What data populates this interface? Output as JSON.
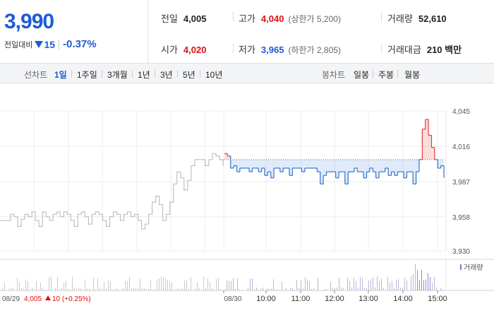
{
  "quote": {
    "current_price": "3,990",
    "change_label": "전일대비",
    "change_abs": "15",
    "change_pct": "-0.37%",
    "stats": {
      "prev_close_label": "전일",
      "prev_close": "4,005",
      "high_label": "고가",
      "high": "4,040",
      "upper_limit": "(상한가 5,200)",
      "volume_label": "거래량",
      "volume": "52,610",
      "open_label": "시가",
      "open": "4,020",
      "low_label": "저가",
      "low": "3,965",
      "lower_limit": "(하한가 2,805)",
      "amount_label": "거래대금",
      "amount": "210 백만"
    }
  },
  "tabs": {
    "line_label": "선차트",
    "line_items": [
      "1일",
      "1주일",
      "3개월",
      "1년",
      "3년",
      "5년",
      "10년"
    ],
    "active_line": "1일",
    "candle_label": "봉차트",
    "candle_items": [
      "일봉",
      "주봉",
      "월봉"
    ]
  },
  "chart_data": {
    "type": "line",
    "y_ticks": [
      "4,045",
      "4,016",
      "3,987",
      "3,958",
      "3,930"
    ],
    "ylim": [
      3930,
      4045
    ],
    "prev_close": 4005,
    "x_ticks": [
      "08/30",
      "10:00",
      "11:00",
      "12:00",
      "13:00",
      "14:00",
      "15:00"
    ],
    "prev_day_label": "08/29",
    "prev_day_close": "4,005",
    "prev_day_change": "10 (+0.25%)",
    "volume_legend": "거래량",
    "prev_day_series": [
      3955,
      3955,
      3955,
      3960,
      3958,
      3950,
      3956,
      3960,
      3958,
      3962,
      3955,
      3950,
      3962,
      3958,
      3955,
      3960,
      3962,
      3958,
      3962,
      3960,
      3955,
      3950,
      3960,
      3962,
      3958,
      3952,
      3960,
      3962,
      3960,
      3955,
      3950,
      3958,
      3962,
      3960,
      3955,
      3960,
      3962,
      3958,
      3960,
      3955,
      3948,
      3952,
      3960,
      3970,
      3975,
      3968,
      3955,
      3960,
      3970,
      3985,
      3995,
      3990,
      3980,
      3988,
      4000,
      4005,
      4005,
      4005,
      4000,
      4005,
      4010,
      4008,
      4005,
      4000
    ],
    "today_series": [
      4010,
      4008,
      3998,
      4000,
      3995,
      3998,
      3998,
      3998,
      3995,
      3998,
      3998,
      3995,
      3998,
      3992,
      3995,
      3990,
      3998,
      3998,
      3995,
      3998,
      3998,
      3992,
      3998,
      3998,
      3998,
      3995,
      3998,
      3998,
      3998,
      3998,
      3995,
      3985,
      3992,
      3995,
      3995,
      3995,
      3990,
      3995,
      3995,
      3985,
      3995,
      3995,
      3998,
      3995,
      3995,
      3990,
      3995,
      3998,
      3995,
      3990,
      3995,
      3995,
      3998,
      3992,
      3995,
      3992,
      3995,
      3995,
      3990,
      3995,
      3995,
      3985,
      3995,
      4005,
      4030,
      4038,
      4025,
      4015,
      4005,
      3998,
      4000,
      3990
    ]
  }
}
